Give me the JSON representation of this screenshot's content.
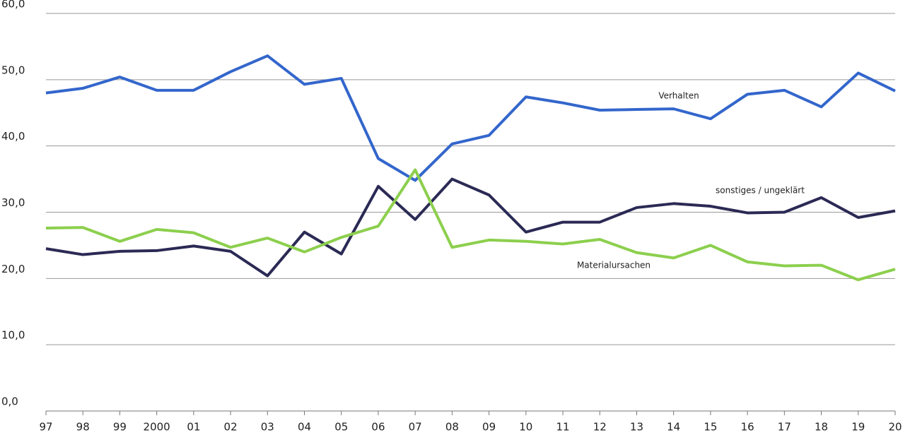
{
  "chart_data": {
    "type": "line",
    "categories": [
      "97",
      "98",
      "99",
      "2000",
      "01",
      "02",
      "03",
      "04",
      "05",
      "06",
      "07",
      "08",
      "09",
      "10",
      "11",
      "12",
      "13",
      "14",
      "15",
      "16",
      "17",
      "18",
      "19",
      "20"
    ],
    "series": [
      {
        "name": "Verhalten",
        "color": "#3366cc",
        "values": [
          48.0,
          48.7,
          50.4,
          48.4,
          48.4,
          51.2,
          53.6,
          49.3,
          50.2,
          38.1,
          34.8,
          40.3,
          41.6,
          47.4,
          46.5,
          45.4,
          45.5,
          45.6,
          44.1,
          47.8,
          48.4,
          45.9,
          51.0,
          48.3
        ]
      },
      {
        "name": "sonstiges / ungeklärt",
        "color": "#2b2a55",
        "values": [
          24.5,
          23.6,
          24.1,
          24.2,
          24.9,
          24.1,
          20.4,
          27.0,
          23.7,
          33.9,
          28.9,
          35.0,
          32.6,
          27.0,
          28.5,
          28.5,
          30.7,
          31.3,
          30.9,
          29.9,
          30.0,
          32.2,
          29.2,
          30.2
        ]
      },
      {
        "name": "Materialursachen",
        "color": "#8ccf4d",
        "values": [
          27.6,
          27.7,
          25.6,
          27.4,
          26.9,
          24.7,
          26.1,
          24.0,
          26.2,
          27.9,
          36.4,
          24.7,
          25.8,
          25.6,
          25.2,
          25.9,
          23.9,
          23.1,
          25.0,
          22.5,
          21.9,
          22.0,
          19.8,
          21.4
        ]
      }
    ],
    "ylim": [
      0,
      60
    ],
    "yticks": [
      {
        "value": 0,
        "label": "0,0"
      },
      {
        "value": 10,
        "label": "10,0"
      },
      {
        "value": 20,
        "label": "20,0"
      },
      {
        "value": 30,
        "label": "30,0"
      },
      {
        "value": 40,
        "label": "40,0"
      },
      {
        "value": 50,
        "label": "50,0"
      },
      {
        "value": 60,
        "label": "60,0"
      }
    ],
    "grid": true
  }
}
